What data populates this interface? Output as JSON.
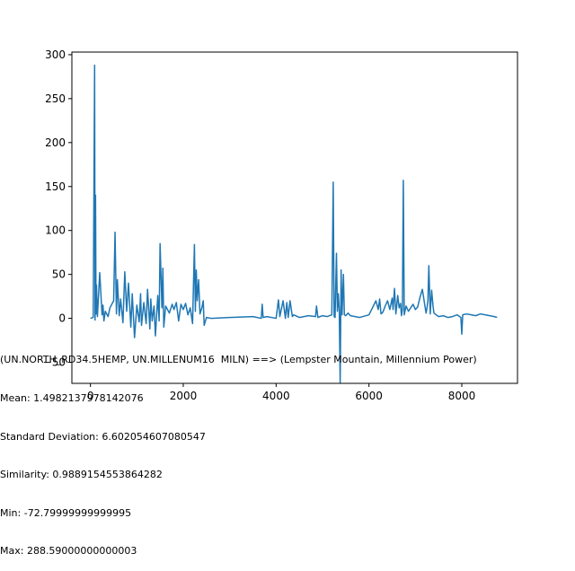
{
  "chart_data": {
    "type": "line",
    "title": "",
    "xlabel": "",
    "ylabel": "",
    "xlim": [
      -400,
      9200
    ],
    "ylim": [
      -74,
      303
    ],
    "x_ticks": [
      0,
      2000,
      4000,
      6000,
      8000
    ],
    "x_tick_labels": [
      "0",
      "2000",
      "4000",
      "6000",
      "8000"
    ],
    "y_ticks": [
      -50,
      0,
      50,
      100,
      150,
      200,
      250,
      300
    ],
    "y_tick_labels": [
      "−50",
      "0",
      "50",
      "100",
      "150",
      "200",
      "250",
      "300"
    ],
    "grid": false,
    "series": [
      {
        "color": "#1f77b4",
        "x": [
          0,
          60,
          90,
          100,
          110,
          120,
          130,
          150,
          200,
          250,
          270,
          290,
          320,
          380,
          420,
          500,
          530,
          560,
          580,
          620,
          650,
          700,
          740,
          780,
          820,
          870,
          900,
          950,
          1000,
          1050,
          1080,
          1100,
          1150,
          1200,
          1230,
          1280,
          1300,
          1330,
          1370,
          1400,
          1450,
          1480,
          1500,
          1540,
          1560,
          1580,
          1620,
          1700,
          1760,
          1800,
          1850,
          1900,
          1950,
          2000,
          2050,
          2100,
          2150,
          2200,
          2240,
          2260,
          2280,
          2300,
          2330,
          2360,
          2400,
          2430,
          2450,
          2500,
          2600,
          3000,
          3500,
          3680,
          3700,
          3720,
          3800,
          4000,
          4050,
          4080,
          4150,
          4200,
          4230,
          4260,
          4300,
          4350,
          4380,
          4500,
          4700,
          4850,
          4870,
          4900,
          5000,
          5100,
          5200,
          5230,
          5250,
          5270,
          5300,
          5320,
          5340,
          5360,
          5380,
          5400,
          5420,
          5450,
          5470,
          5500,
          5550,
          5600,
          5800,
          6000,
          6150,
          6200,
          6230,
          6260,
          6300,
          6350,
          6400,
          6450,
          6500,
          6520,
          6550,
          6580,
          6620,
          6650,
          6680,
          6700,
          6720,
          6740,
          6760,
          6800,
          6850,
          6900,
          6950,
          7000,
          7050,
          7100,
          7150,
          7200,
          7230,
          7250,
          7270,
          7290,
          7320,
          7350,
          7380,
          7400,
          7500,
          7600,
          7700,
          7800,
          7900,
          7980,
          8000,
          8020,
          8100,
          8200,
          8300,
          8400,
          8500,
          8600,
          8700,
          8760
        ],
        "y": [
          0,
          1,
          288,
          -2,
          140,
          5,
          38,
          2,
          52,
          4,
          15,
          -3,
          8,
          2,
          12,
          20,
          98,
          5,
          44,
          3,
          22,
          -5,
          53,
          8,
          40,
          -10,
          28,
          -22,
          15,
          -4,
          28,
          -8,
          18,
          -6,
          33,
          -12,
          22,
          -3,
          14,
          -20,
          26,
          -3,
          85,
          12,
          57,
          -10,
          14,
          6,
          16,
          10,
          18,
          -3,
          16,
          10,
          17,
          4,
          12,
          -6,
          84,
          8,
          55,
          20,
          44,
          5,
          12,
          20,
          -8,
          1,
          0,
          1,
          2,
          0,
          16,
          1,
          2,
          0,
          21,
          2,
          20,
          0,
          18,
          1,
          20,
          2,
          4,
          1,
          3,
          2,
          14,
          1,
          3,
          2,
          4,
          155,
          2,
          1,
          74,
          8,
          28,
          10,
          -73,
          55,
          4,
          50,
          4,
          3,
          6,
          3,
          1,
          4,
          20,
          10,
          22,
          5,
          7,
          14,
          20,
          10,
          23,
          10,
          34,
          5,
          26,
          12,
          17,
          3,
          10,
          157,
          4,
          14,
          8,
          12,
          16,
          10,
          13,
          24,
          33,
          16,
          6,
          12,
          20,
          60,
          5,
          32,
          14,
          6,
          2,
          3,
          1,
          2,
          4,
          1,
          -18,
          4,
          5,
          4,
          3,
          5,
          4,
          3,
          2,
          1
        ]
      }
    ]
  },
  "stats": {
    "line1": "(UN.NORTH_RD34.5HEMP, UN.MILLENUM16  MILN) ==> (Lempster Mountain, Millennium Power)",
    "line2": "Mean: 1.4982137978142076",
    "line3": "Standard Deviation: 6.602054607080547",
    "line4": "Similarity: 0.9889154553864282",
    "line5": "Min: -72.79999999999995",
    "line6": "Max: 288.59000000000003"
  }
}
